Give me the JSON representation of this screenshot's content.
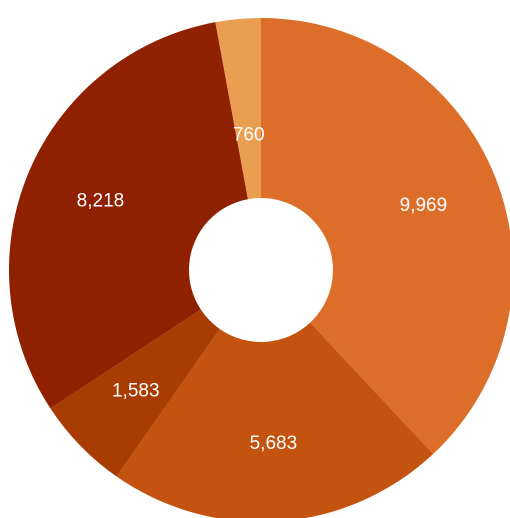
{
  "chart_data": {
    "type": "pie",
    "donut": true,
    "labels_shown": [
      "9,969",
      "5,683",
      "1,583",
      "8,218",
      "760"
    ],
    "values": [
      9969,
      5683,
      1583,
      8218,
      760
    ],
    "colors": [
      "#dc6e2a",
      "#c3530f",
      "#a83c03",
      "#8f2000",
      "#ea9e52"
    ],
    "start_angle_deg": 270,
    "direction": "clockwise",
    "title": "",
    "legend": "none"
  }
}
